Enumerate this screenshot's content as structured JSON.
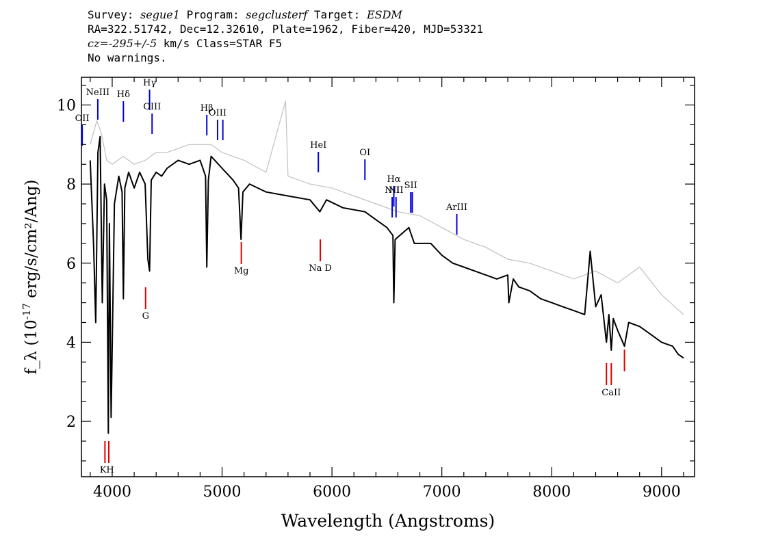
{
  "header": {
    "line1": {
      "survey_label": "Survey: ",
      "survey": "segue1",
      "program_label": " Program: ",
      "program": "segclusterf",
      "target_label": " Target: ",
      "target": "ESDM"
    },
    "line2": "RA=322.51742, Dec=12.32610, Plate=1962, Fiber=420, MJD=53321",
    "line3": {
      "cz": "cz=-295+/-5",
      "rest": " km/s Class=STAR F5"
    },
    "line4": "No warnings."
  },
  "chart_data": {
    "type": "line",
    "xlabel": "Wavelength (Angstroms)",
    "ylabel": "f_λ (10^-17 erg/s/cm²/Ang)",
    "xlim": [
      3720,
      9300
    ],
    "ylim": [
      0.6,
      10.7
    ],
    "x_ticks": [
      4000,
      5000,
      6000,
      7000,
      8000,
      9000
    ],
    "y_ticks": [
      2,
      4,
      6,
      8,
      10
    ],
    "series": [
      {
        "role": "smoothed flux",
        "color": "#000000",
        "x": [
          3800,
          3830,
          3850,
          3870,
          3890,
          3910,
          3930,
          3950,
          3965,
          3975,
          3990,
          4020,
          4060,
          4090,
          4102,
          4115,
          4150,
          4200,
          4250,
          4300,
          4325,
          4340,
          4355,
          4400,
          4450,
          4500,
          4600,
          4700,
          4800,
          4850,
          4861,
          4875,
          4900,
          5000,
          5100,
          5150,
          5172,
          5190,
          5250,
          5400,
          5600,
          5800,
          5890,
          5950,
          6100,
          6300,
          6400,
          6500,
          6555,
          6563,
          6575,
          6700,
          6750,
          6900,
          7000,
          7100,
          7200,
          7300,
          7400,
          7500,
          7600,
          7610,
          7650,
          7700,
          7800,
          7900,
          8000,
          8100,
          8200,
          8300,
          8350,
          8400,
          8450,
          8498,
          8520,
          8542,
          8560,
          8600,
          8662,
          8700,
          8800,
          8900,
          9000,
          9100,
          9150,
          9200
        ],
        "y": [
          8.6,
          6.5,
          4.5,
          8.8,
          9.2,
          5.0,
          8.0,
          7.6,
          1.7,
          7.0,
          2.1,
          7.5,
          8.2,
          7.8,
          5.1,
          7.9,
          8.3,
          7.9,
          8.3,
          8.0,
          6.1,
          5.8,
          8.1,
          8.3,
          8.2,
          8.4,
          8.6,
          8.5,
          8.6,
          8.2,
          5.9,
          8.1,
          8.7,
          8.4,
          8.1,
          7.9,
          6.6,
          7.8,
          8.0,
          7.8,
          7.7,
          7.6,
          7.3,
          7.6,
          7.4,
          7.3,
          7.1,
          6.9,
          6.7,
          5.0,
          6.6,
          6.9,
          6.5,
          6.5,
          6.2,
          6.0,
          5.9,
          5.8,
          5.7,
          5.6,
          5.7,
          5.0,
          5.6,
          5.4,
          5.3,
          5.1,
          5.0,
          4.9,
          4.8,
          4.7,
          6.3,
          4.9,
          5.2,
          4.0,
          4.7,
          3.8,
          4.6,
          4.3,
          3.9,
          4.5,
          4.4,
          4.2,
          4.0,
          3.9,
          3.7,
          3.6
        ]
      },
      {
        "role": "raw flux",
        "color": "#c0c0c0",
        "x": [
          3800,
          3860,
          3900,
          3950,
          4000,
          4100,
          4200,
          4300,
          4400,
          4500,
          4600,
          4700,
          4800,
          4900,
          5000,
          5200,
          5400,
          5578,
          5600,
          5800,
          6000,
          6200,
          6400,
          6600,
          6800,
          7000,
          7200,
          7400,
          7600,
          7800,
          8000,
          8200,
          8400,
          8600,
          8800,
          9000,
          9200
        ],
        "y": [
          9.0,
          9.6,
          9.3,
          8.6,
          8.5,
          8.7,
          8.5,
          8.6,
          8.8,
          8.8,
          8.9,
          9.0,
          9.0,
          9.0,
          8.8,
          8.6,
          8.3,
          10.1,
          8.2,
          8.0,
          7.9,
          7.7,
          7.5,
          7.3,
          7.2,
          6.9,
          6.6,
          6.4,
          6.1,
          6.0,
          5.8,
          5.6,
          5.8,
          5.5,
          5.9,
          5.2,
          4.7
        ]
      }
    ],
    "emission_lines": [
      {
        "label": "OII",
        "x": 3727
      },
      {
        "label": "NeIII",
        "x": 3869
      },
      {
        "label": "Hδ",
        "x": 4102
      },
      {
        "label": "Hγ",
        "x": 4340
      },
      {
        "label": "OIII",
        "x": 4363
      },
      {
        "label": "Hβ",
        "x": 4861
      },
      {
        "label": "OIII",
        "x": 4959
      },
      {
        "label": "OIII",
        "x": 5007
      },
      {
        "label": "HeI",
        "x": 5876
      },
      {
        "label": "OI",
        "x": 6300
      },
      {
        "label": "NII",
        "x": 6548
      },
      {
        "label": "Hα",
        "x": 6563
      },
      {
        "label": "NII",
        "x": 6583
      },
      {
        "label": "SII",
        "x": 6717
      },
      {
        "label": "SII",
        "x": 6731
      },
      {
        "label": "ArIII",
        "x": 7136
      }
    ],
    "absorption_lines": [
      {
        "label": "K",
        "x": 3934
      },
      {
        "label": "H",
        "x": 3969
      },
      {
        "label": "G",
        "x": 4304
      },
      {
        "label": "Mg",
        "x": 5175
      },
      {
        "label": "Na D",
        "x": 5894
      },
      {
        "label": "CaII",
        "x": 8498
      },
      {
        "label": "CaII",
        "x": 8542
      },
      {
        "label": "CaII",
        "x": 8662
      }
    ],
    "emission_color": "#0000dd",
    "absorption_color": "#dd0000",
    "grid": false,
    "legend": "none"
  }
}
